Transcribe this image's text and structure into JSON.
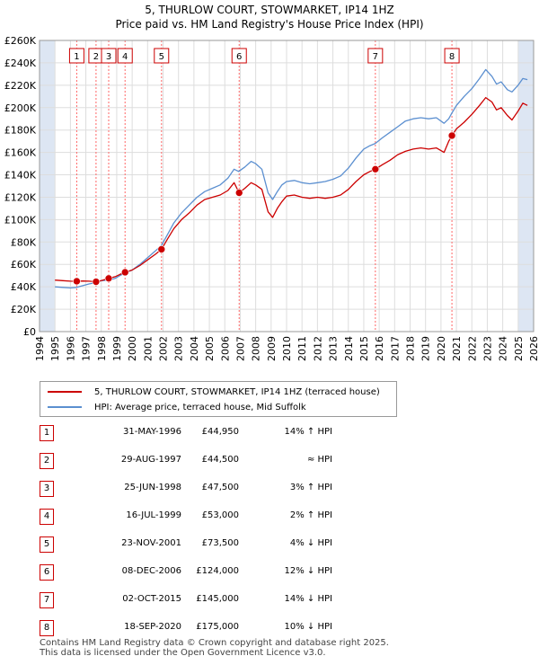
{
  "header": {
    "title_line1": "5, THURLOW COURT, STOWMARKET, IP14 1HZ",
    "title_line2": "Price paid vs. HM Land Registry's House Price Index (HPI)"
  },
  "colors": {
    "property": "#cc0000",
    "hpi": "#5b8fd0",
    "band": "#dde6f3",
    "marker_line": "#ff6666",
    "grid": "#dddddd"
  },
  "chart_data": {
    "type": "line",
    "title": "Price paid vs. HM Land Registry's House Price Index (HPI)",
    "xlabel": "",
    "ylabel": "",
    "xlim": [
      1994,
      2026
    ],
    "ylim": [
      0,
      260000
    ],
    "grid": true,
    "x_ticks": [
      1994,
      1995,
      1996,
      1997,
      1998,
      1999,
      2000,
      2001,
      2002,
      2003,
      2004,
      2005,
      2006,
      2007,
      2008,
      2009,
      2010,
      2011,
      2012,
      2013,
      2014,
      2015,
      2016,
      2017,
      2018,
      2019,
      2020,
      2021,
      2022,
      2023,
      2024,
      2025,
      2026
    ],
    "y_ticks": [
      0,
      20000,
      40000,
      60000,
      80000,
      100000,
      120000,
      140000,
      160000,
      180000,
      200000,
      220000,
      240000,
      260000
    ],
    "y_tick_labels": [
      "£0",
      "£20K",
      "£40K",
      "£60K",
      "£80K",
      "£100K",
      "£120K",
      "£140K",
      "£160K",
      "£180K",
      "£200K",
      "£220K",
      "£240K",
      "£260K"
    ],
    "series": [
      {
        "name": "5, THURLOW COURT, STOWMARKET, IP14 1HZ (terraced house)",
        "color": "#cc0000",
        "x": [
          1995.0,
          1995.5,
          1996.0,
          1996.41,
          1996.8,
          1997.2,
          1997.66,
          1998.0,
          1998.48,
          1998.9,
          1999.2,
          1999.54,
          2000.0,
          2000.5,
          2001.0,
          2001.5,
          2001.9,
          2002.3,
          2002.7,
          2003.2,
          2003.7,
          2004.2,
          2004.7,
          2005.2,
          2005.7,
          2006.2,
          2006.6,
          2006.93,
          2007.3,
          2007.7,
          2008.0,
          2008.4,
          2008.8,
          2009.1,
          2009.4,
          2009.7,
          2010.0,
          2010.5,
          2011.0,
          2011.5,
          2012.0,
          2012.5,
          2013.0,
          2013.5,
          2014.0,
          2014.5,
          2015.0,
          2015.4,
          2015.75,
          2016.2,
          2016.7,
          2017.2,
          2017.7,
          2018.2,
          2018.7,
          2019.2,
          2019.7,
          2020.2,
          2020.5,
          2020.71,
          2021.0,
          2021.5,
          2022.0,
          2022.5,
          2022.9,
          2023.3,
          2023.6,
          2023.9,
          2024.3,
          2024.6,
          2025.0,
          2025.3,
          2025.6
        ],
        "y": [
          46000,
          45500,
          45000,
          44950,
          45200,
          45000,
          44500,
          45500,
          47500,
          49000,
          51000,
          53000,
          55000,
          59000,
          64000,
          69000,
          73500,
          83000,
          92000,
          100000,
          106000,
          113000,
          118000,
          120000,
          122000,
          126000,
          133000,
          124000,
          128000,
          133000,
          131000,
          127000,
          107000,
          102000,
          110000,
          116000,
          121000,
          122000,
          120000,
          119000,
          120000,
          119000,
          120000,
          122000,
          127000,
          134000,
          140000,
          143000,
          145000,
          149000,
          153000,
          158000,
          161000,
          163000,
          164000,
          163000,
          164000,
          160000,
          170000,
          175000,
          181000,
          187000,
          194000,
          202000,
          209000,
          205000,
          198000,
          200000,
          193000,
          189000,
          197000,
          204000,
          202000
        ]
      },
      {
        "name": "HPI: Average price, terraced house, Mid Suffolk",
        "color": "#5b8fd0",
        "x": [
          1995.0,
          1995.5,
          1996.0,
          1996.4,
          1996.8,
          1997.2,
          1997.7,
          1998.0,
          1998.5,
          1998.9,
          1999.2,
          1999.5,
          2000.0,
          2000.5,
          2001.0,
          2001.5,
          2001.9,
          2002.3,
          2002.7,
          2003.2,
          2003.7,
          2004.2,
          2004.7,
          2005.2,
          2005.7,
          2006.2,
          2006.6,
          2006.9,
          2007.3,
          2007.7,
          2008.0,
          2008.4,
          2008.8,
          2009.1,
          2009.4,
          2009.7,
          2010.0,
          2010.5,
          2011.0,
          2011.5,
          2012.0,
          2012.5,
          2013.0,
          2013.5,
          2014.0,
          2014.5,
          2015.0,
          2015.4,
          2015.75,
          2016.2,
          2016.7,
          2017.2,
          2017.7,
          2018.2,
          2018.7,
          2019.2,
          2019.7,
          2020.2,
          2020.5,
          2020.7,
          2021.0,
          2021.5,
          2022.0,
          2022.5,
          2022.9,
          2023.3,
          2023.6,
          2023.9,
          2024.3,
          2024.6,
          2025.0,
          2025.3,
          2025.6
        ],
        "y": [
          40000,
          39500,
          39000,
          39500,
          41000,
          42500,
          44000,
          45500,
          46000,
          47500,
          50000,
          52000,
          55000,
          60000,
          66000,
          72000,
          77000,
          87000,
          97000,
          106000,
          113000,
          120000,
          125000,
          128000,
          131000,
          137000,
          145000,
          143000,
          147000,
          152000,
          150000,
          145000,
          124000,
          118000,
          125000,
          131000,
          134000,
          135000,
          133000,
          132000,
          133000,
          134000,
          136000,
          139000,
          146000,
          155000,
          163000,
          166000,
          168000,
          173000,
          178000,
          183000,
          188000,
          190000,
          191000,
          190000,
          191000,
          186000,
          190000,
          195000,
          202000,
          210000,
          217000,
          226000,
          234000,
          228000,
          221000,
          223000,
          216000,
          214000,
          220000,
          226000,
          225000
        ]
      }
    ],
    "sale_markers": [
      {
        "n": "1",
        "x": 1996.41,
        "y": 44950
      },
      {
        "n": "2",
        "x": 1997.66,
        "y": 44500
      },
      {
        "n": "3",
        "x": 1998.48,
        "y": 47500
      },
      {
        "n": "4",
        "x": 1999.54,
        "y": 53000
      },
      {
        "n": "5",
        "x": 2001.9,
        "y": 73500
      },
      {
        "n": "6",
        "x": 2006.93,
        "y": 124000
      },
      {
        "n": "7",
        "x": 2015.75,
        "y": 145000
      },
      {
        "n": "8",
        "x": 2020.71,
        "y": 175000
      }
    ],
    "shaded_bands": [
      [
        1994,
        1995
      ],
      [
        2025,
        2026
      ]
    ]
  },
  "legend": {
    "property_label": "5, THURLOW COURT, STOWMARKET, IP14 1HZ (terraced house)",
    "hpi_label": "HPI: Average price, terraced house, Mid Suffolk"
  },
  "sales": [
    {
      "n": "1",
      "date": "31-MAY-1996",
      "price": "£44,950",
      "hpi": "14% ↑ HPI"
    },
    {
      "n": "2",
      "date": "29-AUG-1997",
      "price": "£44,500",
      "hpi": "≈ HPI"
    },
    {
      "n": "3",
      "date": "25-JUN-1998",
      "price": "£47,500",
      "hpi": "3% ↑ HPI"
    },
    {
      "n": "4",
      "date": "16-JUL-1999",
      "price": "£53,000",
      "hpi": "2% ↑ HPI"
    },
    {
      "n": "5",
      "date": "23-NOV-2001",
      "price": "£73,500",
      "hpi": "4% ↓ HPI"
    },
    {
      "n": "6",
      "date": "08-DEC-2006",
      "price": "£124,000",
      "hpi": "12% ↓ HPI"
    },
    {
      "n": "7",
      "date": "02-OCT-2015",
      "price": "£145,000",
      "hpi": "14% ↓ HPI"
    },
    {
      "n": "8",
      "date": "18-SEP-2020",
      "price": "£175,000",
      "hpi": "10% ↓ HPI"
    }
  ],
  "footer": {
    "line1": "Contains HM Land Registry data © Crown copyright and database right 2025.",
    "line2": "This data is licensed under the Open Government Licence v3.0."
  }
}
